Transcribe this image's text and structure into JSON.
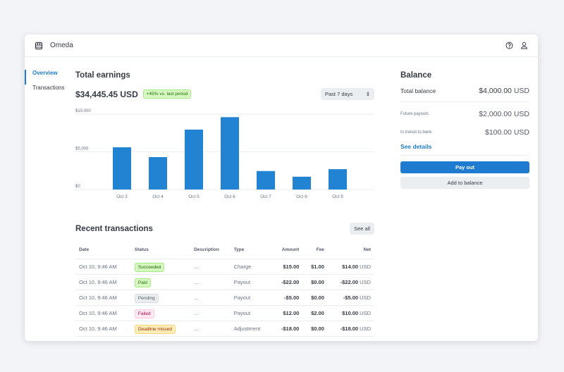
{
  "app": {
    "name": "Omeda"
  },
  "sidebar": {
    "items": [
      {
        "label": "Overview",
        "active": true
      },
      {
        "label": "Transactions"
      }
    ]
  },
  "earnings": {
    "title": "Total earnings",
    "amount": "$34,445.45 USD",
    "badge": "+45% vs. last period",
    "period": "Past 7 days"
  },
  "chart_data": {
    "type": "bar",
    "categories": [
      "Oct 3",
      "Oct 4",
      "Oct 5",
      "Oct 6",
      "Oct 7",
      "Oct 8",
      "Oct 9"
    ],
    "values": [
      5600,
      4300,
      7950,
      9600,
      2450,
      1700,
      2700
    ],
    "yticks": [
      "$0",
      "$5,000",
      "$10,000"
    ],
    "ylim": [
      0,
      10000
    ],
    "grid": true,
    "color": "#2283d2"
  },
  "transactions": {
    "title": "Recent transactions",
    "see_all": "See all",
    "columns": [
      "Date",
      "Status",
      "Description",
      "Type",
      "Amount",
      "Fee",
      "Net"
    ],
    "rows": [
      {
        "date": "Oct 10, 9:46 AM",
        "status": "Succeeded",
        "tone": "green",
        "desc": "...",
        "type": "Charge",
        "amount": "$15.00",
        "fee": "$1.00",
        "net": "$14.00",
        "cur": "USD"
      },
      {
        "date": "Oct 10, 9:46 AM",
        "status": "Paid",
        "tone": "green",
        "desc": "...",
        "type": "Payout",
        "amount": "-$22.00",
        "fee": "$0.00",
        "net": "-$22.00",
        "cur": "USD"
      },
      {
        "date": "Oct 10, 9:46 AM",
        "status": "Pending",
        "tone": "grey",
        "desc": "...",
        "type": "Payout",
        "amount": "-$5.00",
        "fee": "$0.00",
        "net": "-$5.00",
        "cur": "USD"
      },
      {
        "date": "Oct 10, 9:46 AM",
        "status": "Failed",
        "tone": "pink",
        "desc": "...",
        "type": "Payout",
        "amount": "$12.00",
        "fee": "$2.00",
        "net": "$10.00",
        "cur": "USD"
      },
      {
        "date": "Oct 10, 9:46 AM",
        "status": "Deadline missed",
        "tone": "yellow",
        "desc": "...",
        "type": "Adjustment",
        "amount": "-$18.00",
        "fee": "$0.00",
        "net": "-$18.00",
        "cur": "USD"
      }
    ]
  },
  "balance": {
    "title": "Balance",
    "total_label": "Total balance",
    "total": "$4,000.00",
    "total_cur": "USD",
    "future_label": "Future payouts",
    "future": "$2,000.00",
    "future_cur": "USD",
    "transit_label": "In transit to bank",
    "transit": "$100.00",
    "transit_cur": "USD",
    "see_details": "See details",
    "pay_out": "Pay out",
    "add": "Add to balance"
  }
}
